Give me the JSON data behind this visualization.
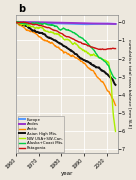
{
  "title": "b",
  "xlabel": "year",
  "ylabel": "cumulative total mass balance [mm SLE]",
  "xlim": [
    1960,
    2005
  ],
  "ylim": [
    -7.2,
    0.4
  ],
  "yticks": [
    0,
    -1,
    -2,
    -3,
    -4,
    -5,
    -6,
    -7
  ],
  "ytick_labels": [
    "0",
    "1",
    "2",
    "3",
    "4",
    "5",
    "6",
    "7"
  ],
  "xticks": [
    1960,
    1970,
    1980,
    1990,
    2000
  ],
  "xtick_labels": [
    "1960",
    "1970",
    "1980",
    "1990",
    "2000"
  ],
  "bg_color": "#ede8de",
  "grid_color": "#ffffff",
  "series": {
    "Europe": {
      "color": "#5599ff",
      "lw": 1.4
    },
    "Andes": {
      "color": "#9933cc",
      "lw": 1.4
    },
    "Arctic": {
      "color": "#ff8800",
      "lw": 1.0
    },
    "Asian High Mts.": {
      "color": "#111111",
      "lw": 1.4
    },
    "NW USA+SW-Can.": {
      "color": "#aaee00",
      "lw": 1.0
    },
    "Alaska+Coast Mts.": {
      "color": "#00cc44",
      "lw": 1.0
    },
    "Patagonia": {
      "color": "#cc1111",
      "lw": 1.0
    }
  },
  "legend_order": [
    "Europe",
    "Andes",
    "Arctic",
    "Asian High Mts.",
    "NW USA+SW-Can.",
    "Alaska+Coast Mts.",
    "Patagonia"
  ],
  "curves": {
    "Europe": {
      "years": [
        1960,
        1965,
        1970,
        1975,
        1980,
        1985,
        1990,
        1995,
        2000,
        2004
      ],
      "vals": [
        0.0,
        -0.02,
        -0.04,
        -0.05,
        -0.07,
        -0.09,
        -0.11,
        -0.1,
        -0.08,
        -0.1
      ]
    },
    "Andes": {
      "years": [
        1960,
        1965,
        1970,
        1975,
        1980,
        1985,
        1990,
        1995,
        2000,
        2004
      ],
      "vals": [
        0.0,
        0.0,
        0.0,
        -0.02,
        -0.03,
        -0.04,
        -0.06,
        -0.07,
        -0.08,
        -0.09
      ]
    },
    "Arctic": {
      "years": [
        1960,
        1963,
        1966,
        1969,
        1972,
        1975,
        1978,
        1981,
        1984,
        1987,
        1990,
        1993,
        1996,
        1999,
        2002,
        2004
      ],
      "vals": [
        0.0,
        -0.18,
        -0.35,
        -0.55,
        -0.75,
        -0.98,
        -1.2,
        -1.45,
        -1.72,
        -2.0,
        -2.3,
        -2.6,
        -2.95,
        -3.3,
        -3.8,
        -4.3
      ]
    },
    "Asian High Mts.": {
      "years": [
        1960,
        1963,
        1966,
        1969,
        1972,
        1975,
        1978,
        1981,
        1984,
        1987,
        1990,
        1993,
        1996,
        1999,
        2002,
        2004
      ],
      "vals": [
        0.0,
        -0.1,
        -0.22,
        -0.38,
        -0.55,
        -0.73,
        -0.93,
        -1.15,
        -1.4,
        -1.65,
        -1.92,
        -2.18,
        -2.5,
        -2.82,
        -3.2,
        -3.6
      ]
    },
    "NW USA+SW-Can.": {
      "years": [
        1960,
        1963,
        1966,
        1969,
        1972,
        1975,
        1978,
        1981,
        1984,
        1987,
        1990,
        1993,
        1996,
        1999,
        2001,
        2002,
        2003,
        2004
      ],
      "vals": [
        0.0,
        -0.1,
        -0.22,
        -0.35,
        -0.5,
        -0.65,
        -0.82,
        -1.02,
        -1.22,
        -1.45,
        -1.7,
        -1.95,
        -2.15,
        -2.35,
        -2.5,
        -3.5,
        -5.5,
        -6.5
      ]
    },
    "Alaska+Coast Mts.": {
      "years": [
        1960,
        1963,
        1966,
        1969,
        1972,
        1975,
        1978,
        1981,
        1984,
        1987,
        1990,
        1993,
        1996,
        1999,
        2001,
        2002,
        2003,
        2004
      ],
      "vals": [
        0.0,
        -0.05,
        -0.1,
        -0.15,
        -0.2,
        -0.28,
        -0.38,
        -0.5,
        -0.65,
        -0.85,
        -1.1,
        -1.45,
        -1.85,
        -2.2,
        -2.5,
        -2.8,
        -3.0,
        -3.1
      ]
    },
    "Patagonia": {
      "years": [
        1960,
        1963,
        1966,
        1969,
        1972,
        1975,
        1978,
        1981,
        1984,
        1987,
        1990,
        1993,
        1996,
        1999,
        2002,
        2004
      ],
      "vals": [
        0.0,
        -0.05,
        -0.12,
        -0.2,
        -0.3,
        -0.42,
        -0.55,
        -0.7,
        -0.87,
        -1.05,
        -1.22,
        -1.38,
        -1.5,
        -1.6,
        -1.62,
        -1.6
      ]
    }
  }
}
